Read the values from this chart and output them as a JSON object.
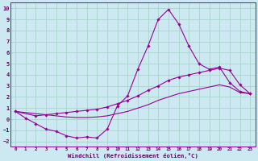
{
  "background_color": "#cce8f0",
  "grid_color": "#aad4cc",
  "line_color": "#990099",
  "xlabel": "Windchill (Refroidissement éolien,°C)",
  "xlabel_color": "#660066",
  "tick_color": "#660066",
  "ylim": [
    -2.5,
    10.5
  ],
  "xlim": [
    -0.5,
    23.5
  ],
  "x_ticks": [
    0,
    1,
    2,
    3,
    4,
    5,
    6,
    7,
    8,
    9,
    10,
    11,
    12,
    13,
    14,
    15,
    16,
    17,
    18,
    19,
    20,
    21,
    22,
    23
  ],
  "y_ticks": [
    -2,
    -1,
    0,
    1,
    2,
    3,
    4,
    5,
    6,
    7,
    8,
    9,
    10
  ],
  "line1_x": [
    0,
    1,
    2,
    3,
    4,
    5,
    6,
    7,
    8,
    9,
    10,
    11,
    12,
    13,
    14,
    15,
    16,
    17,
    18,
    19,
    20,
    21,
    22,
    23
  ],
  "line1_y": [
    0.7,
    0.1,
    -0.4,
    -0.9,
    -1.1,
    -1.5,
    -1.7,
    -1.6,
    -1.7,
    -0.9,
    1.2,
    2.1,
    4.5,
    6.6,
    9.0,
    9.9,
    8.6,
    6.6,
    5.0,
    4.5,
    4.7,
    3.3,
    2.5,
    2.3
  ],
  "line2_x": [
    0,
    2,
    3,
    4,
    5,
    6,
    7,
    8,
    9,
    10,
    11,
    12,
    13,
    14,
    15,
    16,
    17,
    18,
    19,
    20,
    21,
    22,
    23
  ],
  "line2_y": [
    0.7,
    0.3,
    0.4,
    0.5,
    0.6,
    0.7,
    0.8,
    0.9,
    1.1,
    1.4,
    1.7,
    2.1,
    2.6,
    3.0,
    3.5,
    3.8,
    4.0,
    4.2,
    4.4,
    4.6,
    4.4,
    3.1,
    2.3
  ],
  "line3_x": [
    0,
    1,
    2,
    3,
    4,
    5,
    6,
    7,
    8,
    9,
    10,
    11,
    12,
    13,
    14,
    15,
    16,
    17,
    18,
    19,
    20,
    21,
    22,
    23
  ],
  "line3_y": [
    0.7,
    0.6,
    0.5,
    0.4,
    0.3,
    0.2,
    0.15,
    0.15,
    0.2,
    0.3,
    0.5,
    0.7,
    1.0,
    1.3,
    1.7,
    2.0,
    2.3,
    2.5,
    2.7,
    2.9,
    3.1,
    2.9,
    2.4,
    2.3
  ]
}
